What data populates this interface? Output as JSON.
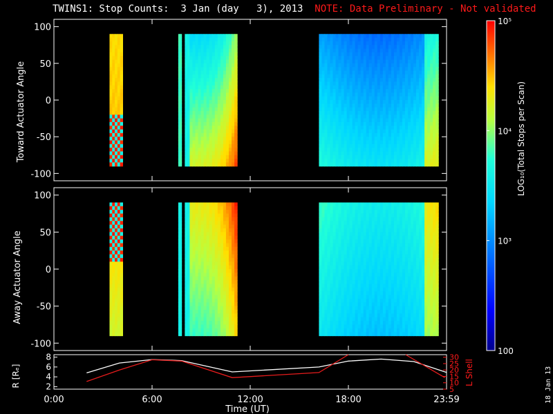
{
  "title": {
    "main": "TWINS1: Stop Counts:  3 Jan (day   3), 2013",
    "note": "NOTE: Data Preliminary - Not validated"
  },
  "date_stamp": "18 Jan 13",
  "colors": {
    "background": "#000000",
    "axes": "#ffffff",
    "note": "#ff1a1a",
    "r_line": "#ffffff",
    "l_shell_line": "#e81c1c"
  },
  "chart_data": [
    {
      "type": "heatmap",
      "ylabel": "Toward Actuator Angle",
      "ylim": [
        -110,
        110
      ],
      "yticks": [
        100,
        50,
        0,
        -50,
        -100
      ],
      "xlim": [
        0,
        24
      ],
      "xticks": [
        "",
        "",
        "",
        "",
        ""
      ],
      "colorscale": "log",
      "blocks": [
        {
          "x": [
            3.4,
            4.2
          ],
          "y": [
            -90,
            90
          ],
          "level_top": 4.4,
          "level_bottom": 4.5,
          "pattern": "noisy-bottom"
        },
        {
          "x": [
            7.6,
            7.8
          ],
          "y": [
            -90,
            90
          ],
          "level_top": 3.8,
          "level_bottom": 3.8
        },
        {
          "x": [
            8.0,
            8.3
          ],
          "y": [
            -90,
            90
          ],
          "level_top": 3.6,
          "level_bottom": 3.6
        },
        {
          "x": [
            8.3,
            11.2
          ],
          "y": [
            -90,
            90
          ],
          "level_top": 3.4,
          "level_bottom": 4.2,
          "trend": "rising-right"
        },
        {
          "x": [
            16.2,
            23.5
          ],
          "y": [
            -90,
            90
          ],
          "level_top": 3.1,
          "level_bottom": 3.7,
          "trend": "dip-middle"
        }
      ]
    },
    {
      "type": "heatmap",
      "ylabel": "Away Actuator Angle",
      "ylim": [
        -110,
        110
      ],
      "yticks": [
        100,
        50,
        0,
        -50,
        -100
      ],
      "xlim": [
        0,
        24
      ],
      "xticks": [
        "",
        "",
        "",
        "",
        ""
      ],
      "colorscale": "log",
      "blocks": [
        {
          "x": [
            3.4,
            4.2
          ],
          "y": [
            -90,
            90
          ],
          "level_top": 4.5,
          "level_bottom": 4.2,
          "pattern": "noisy-top"
        },
        {
          "x": [
            7.6,
            7.8
          ],
          "y": [
            -90,
            90
          ],
          "level_top": 3.6,
          "level_bottom": 3.6
        },
        {
          "x": [
            8.0,
            8.3
          ],
          "y": [
            -90,
            90
          ],
          "level_top": 3.6,
          "level_bottom": 3.6
        },
        {
          "x": [
            8.3,
            11.2
          ],
          "y": [
            -90,
            90
          ],
          "level_top": 4.3,
          "level_bottom": 3.8,
          "trend": "rising-right"
        },
        {
          "x": [
            16.2,
            23.5
          ],
          "y": [
            -90,
            90
          ],
          "level_top": 3.8,
          "level_bottom": 3.5,
          "trend": "dip-middle"
        }
      ]
    },
    {
      "type": "line",
      "ylabel_left": "R [Rₑ]",
      "ylabel_right": "L Shell",
      "xlabel": "Time (UT)",
      "xlim": [
        0,
        24
      ],
      "xticks": [
        "0:00",
        "6:00",
        "12:00",
        "18:00",
        "23:59"
      ],
      "ylim_left": [
        1.5,
        8.5
      ],
      "yticks_left": [
        8,
        6,
        4,
        2
      ],
      "ylim_right": [
        5,
        32
      ],
      "yticks_right": [
        30,
        25,
        20,
        15,
        10,
        5
      ],
      "series": [
        {
          "axis": "left",
          "x": [
            2,
            4,
            6,
            7.8,
            10.9,
            16.2,
            18,
            20,
            22,
            24
          ],
          "y": [
            4.8,
            6.8,
            7.5,
            7.3,
            5.0,
            6.0,
            7.2,
            7.6,
            7.1,
            4.9
          ]
        },
        {
          "axis": "right",
          "x": [
            2,
            4,
            6,
            7.8,
            10.9,
            16.2,
            18.0
          ],
          "y": [
            11,
            20,
            28,
            27,
            14,
            18,
            32
          ]
        },
        {
          "axis": "right",
          "x": [
            21.5,
            23.9
          ],
          "y": [
            32,
            14
          ]
        }
      ]
    },
    {
      "type": "colorbar",
      "label": "LOG₁₀(Total Stops per Scan)",
      "scale": "log",
      "range": [
        100,
        100000
      ],
      "tick_labels": [
        "10⁵",
        "10⁴",
        "10³",
        "100"
      ],
      "tick_values": [
        100000,
        10000,
        1000,
        100
      ]
    }
  ]
}
